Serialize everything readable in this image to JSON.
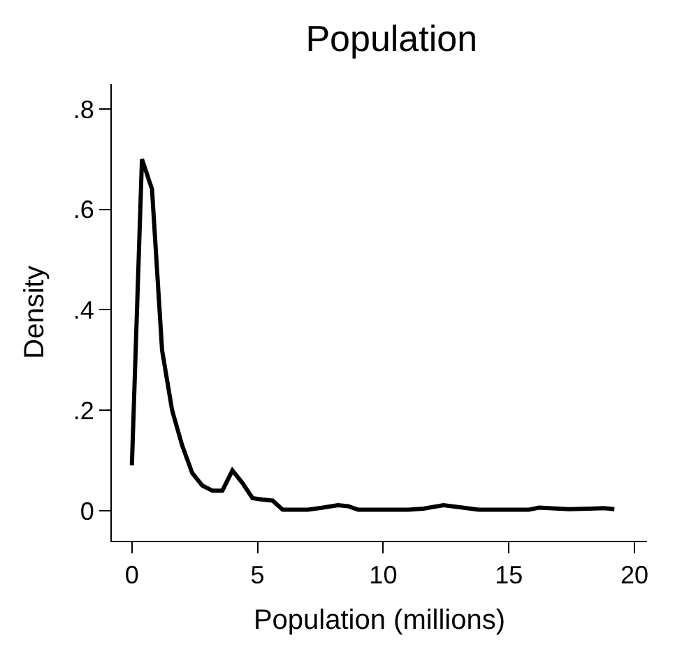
{
  "chart_data": {
    "type": "line",
    "title": "Population",
    "xlabel": "Population (millions)",
    "ylabel": "Density",
    "x": [
      0,
      0.4,
      0.8,
      1.2,
      1.6,
      2.0,
      2.4,
      2.8,
      3.2,
      3.6,
      4.0,
      4.4,
      4.8,
      5.2,
      5.6,
      6.0,
      7.0,
      7.6,
      8.2,
      8.6,
      9.0,
      10,
      11,
      11.6,
      12.4,
      13,
      13.8,
      15,
      15.8,
      16.2,
      16.6,
      17.4,
      18.2,
      18.8,
      19.2
    ],
    "series": [
      {
        "color": "#000000",
        "values": [
          0.09,
          0.7,
          0.64,
          0.32,
          0.2,
          0.13,
          0.075,
          0.05,
          0.04,
          0.04,
          0.08,
          0.055,
          0.025,
          0.022,
          0.02,
          0.002,
          0.002,
          0.006,
          0.011,
          0.009,
          0.002,
          0.002,
          0.002,
          0.004,
          0.011,
          0.007,
          0.002,
          0.002,
          0.002,
          0.006,
          0.005,
          0.003,
          0.004,
          0.005,
          0.003
        ]
      }
    ],
    "xlim": [
      -0.8,
      20.5
    ],
    "ylim": [
      -0.06,
      0.85
    ],
    "xticks": [
      0,
      5,
      10,
      15,
      20
    ],
    "yticks": [
      {
        "value": 0,
        "label": "0"
      },
      {
        "value": 0.2,
        "label": ".2"
      },
      {
        "value": 0.4,
        "label": ".4"
      },
      {
        "value": 0.6,
        "label": ".6"
      },
      {
        "value": 0.8,
        "label": ".8"
      }
    ],
    "marker": "none",
    "line_style": "solid"
  }
}
